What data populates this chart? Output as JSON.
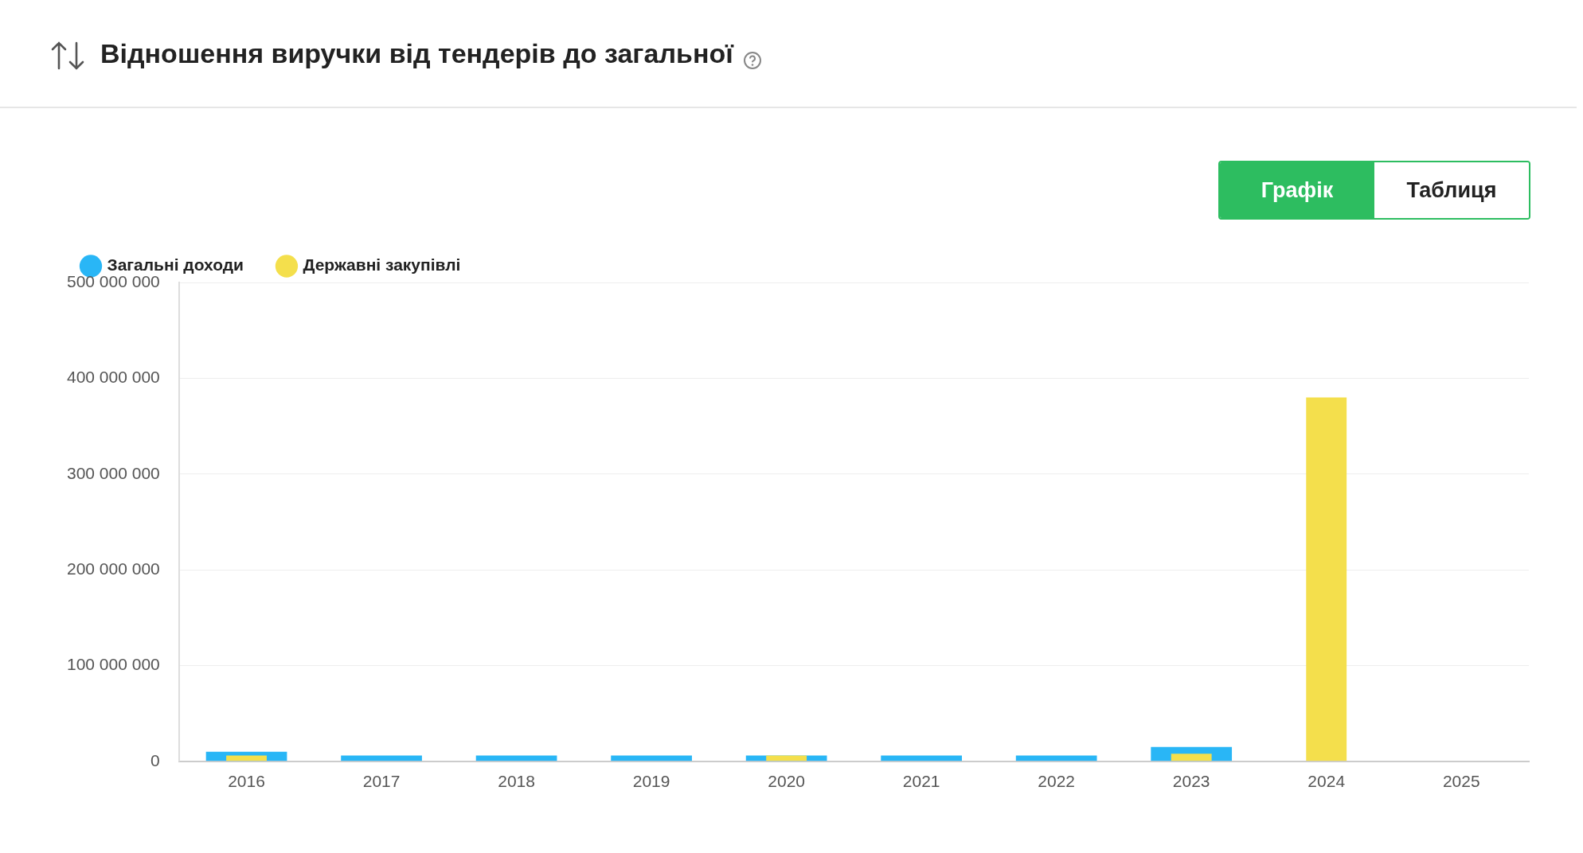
{
  "chart_data": {
    "type": "bar",
    "title": "Відношення виручки від тендерів до загальної",
    "annotations": [
      "Графік",
      "Таблиця"
    ],
    "categories": [
      "2016",
      "2017",
      "2018",
      "2019",
      "2020",
      "2021",
      "2022",
      "2023",
      "2024",
      "2025"
    ],
    "series": [
      {
        "name": "Загальні доходи",
        "color": "#29b6f6",
        "values": [
          10000000,
          6000000,
          6000000,
          6000000,
          6000000,
          6000000,
          6000000,
          15000000,
          null,
          null
        ]
      },
      {
        "name": "Державні закупівлі",
        "color": "#f4df4c",
        "values": [
          6000000,
          null,
          null,
          null,
          6000000,
          null,
          null,
          8000000,
          380000000,
          null
        ]
      }
    ],
    "ylim": [
      0,
      500000000
    ],
    "yticks": [
      {
        "value": 0,
        "label": "0"
      },
      {
        "value": 100000000,
        "label": "100 000 000"
      },
      {
        "value": 200000000,
        "label": "200 000 000"
      },
      {
        "value": 300000000,
        "label": "300 000 000"
      },
      {
        "value": 400000000,
        "label": "400 000 000"
      },
      {
        "value": 500000000,
        "label": "500 000 000"
      }
    ],
    "grid": "y",
    "legend": "top left"
  }
}
